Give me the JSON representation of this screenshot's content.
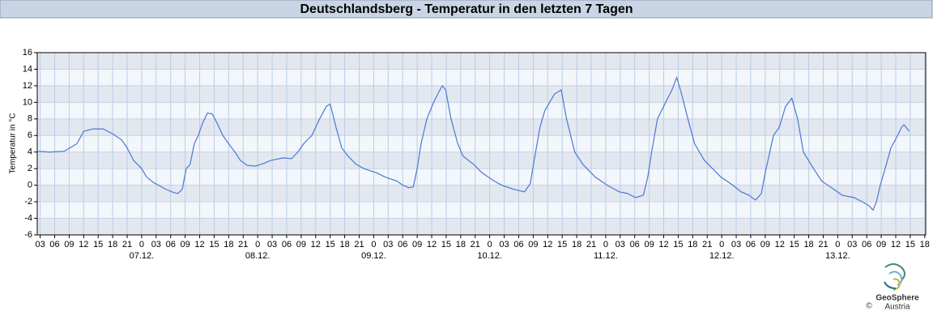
{
  "chart_data": {
    "type": "line",
    "title": "Deutschlandsberg - Temperatur in den letzten 7 Tagen",
    "y_label": "Temperatur in °C",
    "x": [
      2.4,
      5,
      8,
      10.6,
      12,
      14,
      16,
      18,
      19.8,
      21,
      22.3,
      24,
      25,
      26.5,
      27.5,
      29,
      30.7,
      31.5,
      32.4,
      33.2,
      34,
      34.9,
      35.7,
      36.6,
      37.6,
      38.6,
      39.6,
      40.8,
      42,
      43.3,
      44.4,
      45.8,
      47.5,
      49.1,
      50.8,
      53.3,
      55,
      56.3,
      57.5,
      59.2,
      60.8,
      62.2,
      63,
      64.2,
      65.4,
      66.7,
      68.4,
      70,
      72.6,
      74.3,
      76.8,
      78,
      79.3,
      80.2,
      81,
      81.8,
      83,
      84.4,
      85.7,
      86.2,
      86.9,
      88,
      89.4,
      90.5,
      92.7,
      94.4,
      96.9,
      98.5,
      101,
      103.2,
      104.4,
      105.2,
      106.4,
      107.4,
      109.4,
      110.8,
      111.9,
      113.6,
      115.3,
      117.8,
      120.3,
      122.8,
      124.5,
      126.2,
      127.8,
      128.7,
      129.5,
      130.7,
      132.4,
      133.7,
      134.7,
      135.7,
      137,
      138.4,
      140.4,
      142.1,
      143.8,
      146.3,
      148,
      149.6,
      151,
      152.2,
      153,
      154.7,
      155.9,
      157.2,
      158.5,
      159.7,
      160.9,
      163,
      164.7,
      167.2,
      168.9,
      171.4,
      173.1,
      174.5,
      175.3,
      176,
      176.8,
      177.8,
      179,
      180.4,
      181.2,
      181.7,
      182.8
    ],
    "series": [
      {
        "color": "#4a78d6",
        "values": [
          4.1,
          4.0,
          4.1,
          5,
          6.5,
          6.8,
          6.8,
          6.2,
          5.5,
          4.5,
          3,
          2,
          1,
          0.3,
          0,
          -0.5,
          -0.9,
          -1,
          -0.5,
          2,
          2.5,
          5,
          6,
          7.5,
          8.7,
          8.6,
          7.5,
          6,
          5,
          4,
          3,
          2.4,
          2.3,
          2.6,
          3.0,
          3.3,
          3.2,
          4,
          5,
          6,
          8,
          9.5,
          9.8,
          7,
          4.5,
          3.5,
          2.5,
          2,
          1.5,
          1,
          0.5,
          0,
          -0.3,
          -0.2,
          2,
          5,
          8,
          10,
          11.5,
          12,
          11.5,
          8,
          5,
          3.5,
          2.5,
          1.5,
          0.5,
          0,
          -0.5,
          -0.8,
          0.2,
          3,
          7,
          9,
          11,
          11.5,
          8,
          4,
          2.5,
          1,
          0,
          -0.8,
          -1,
          -1.5,
          -1.2,
          1,
          4,
          8,
          10,
          11.5,
          13,
          11,
          8,
          5,
          3,
          2,
          1,
          0,
          -0.8,
          -1.2,
          -1.8,
          -1,
          1.5,
          6,
          7,
          9.5,
          10.5,
          8,
          4,
          2,
          0.5,
          -0.5,
          -1.2,
          -1.5,
          -2,
          -2.5,
          -3,
          -2,
          0,
          2,
          4.5,
          6,
          7,
          7.3,
          6.5
        ]
      }
    ],
    "xlim": [
      2.4,
      186.2
    ],
    "ylim": [
      -6,
      16
    ],
    "yticks": [
      -6,
      -4,
      -2,
      0,
      2,
      4,
      6,
      8,
      10,
      12,
      14,
      16
    ],
    "xticks": [
      {
        "value": 3,
        "label": "03"
      },
      {
        "value": 6,
        "label": "06"
      },
      {
        "value": 9,
        "label": "09"
      },
      {
        "value": 12,
        "label": "12"
      },
      {
        "value": 15,
        "label": "15"
      },
      {
        "value": 18,
        "label": "18"
      },
      {
        "value": 21,
        "label": "21"
      },
      {
        "value": 24,
        "label": "0"
      },
      {
        "value": 27,
        "label": "03"
      },
      {
        "value": 30,
        "label": "06"
      },
      {
        "value": 33,
        "label": "09"
      },
      {
        "value": 36,
        "label": "12"
      },
      {
        "value": 39,
        "label": "15"
      },
      {
        "value": 42,
        "label": "18"
      },
      {
        "value": 45,
        "label": "21"
      },
      {
        "value": 48,
        "label": "0"
      },
      {
        "value": 51,
        "label": "03"
      },
      {
        "value": 54,
        "label": "06"
      },
      {
        "value": 57,
        "label": "09"
      },
      {
        "value": 60,
        "label": "12"
      },
      {
        "value": 63,
        "label": "15"
      },
      {
        "value": 66,
        "label": "18"
      },
      {
        "value": 69,
        "label": "21"
      },
      {
        "value": 72,
        "label": "0"
      },
      {
        "value": 75,
        "label": "03"
      },
      {
        "value": 78,
        "label": "06"
      },
      {
        "value": 81,
        "label": "09"
      },
      {
        "value": 84,
        "label": "12"
      },
      {
        "value": 87,
        "label": "15"
      },
      {
        "value": 90,
        "label": "18"
      },
      {
        "value": 93,
        "label": "21"
      },
      {
        "value": 96,
        "label": "0"
      },
      {
        "value": 99,
        "label": "03"
      },
      {
        "value": 102,
        "label": "06"
      },
      {
        "value": 105,
        "label": "09"
      },
      {
        "value": 108,
        "label": "12"
      },
      {
        "value": 111,
        "label": "15"
      },
      {
        "value": 114,
        "label": "18"
      },
      {
        "value": 117,
        "label": "21"
      },
      {
        "value": 120,
        "label": "0"
      },
      {
        "value": 123,
        "label": "03"
      },
      {
        "value": 126,
        "label": "06"
      },
      {
        "value": 129,
        "label": "09"
      },
      {
        "value": 132,
        "label": "12"
      },
      {
        "value": 135,
        "label": "15"
      },
      {
        "value": 138,
        "label": "18"
      },
      {
        "value": 141,
        "label": "21"
      },
      {
        "value": 144,
        "label": "0"
      },
      {
        "value": 147,
        "label": "03"
      },
      {
        "value": 150,
        "label": "06"
      },
      {
        "value": 153,
        "label": "09"
      },
      {
        "value": 156,
        "label": "12"
      },
      {
        "value": 159,
        "label": "15"
      },
      {
        "value": 162,
        "label": "18"
      },
      {
        "value": 165,
        "label": "21"
      },
      {
        "value": 168,
        "label": "0"
      },
      {
        "value": 171,
        "label": "03"
      },
      {
        "value": 174,
        "label": "06"
      },
      {
        "value": 177,
        "label": "09"
      },
      {
        "value": 180,
        "label": "12"
      },
      {
        "value": 183,
        "label": "15"
      },
      {
        "value": 186,
        "label": "18"
      }
    ],
    "date_ticks": [
      {
        "value": 24,
        "label": "07.12."
      },
      {
        "value": 48,
        "label": "08.12."
      },
      {
        "value": 72,
        "label": "09.12."
      },
      {
        "value": 96,
        "label": "10.12."
      },
      {
        "value": 120,
        "label": "11.12."
      },
      {
        "value": 144,
        "label": "12.12."
      },
      {
        "value": 168,
        "label": "13.12."
      }
    ],
    "grid": true
  },
  "logo": {
    "name": "GeoSphere",
    "country": "Austria",
    "copyright": "©"
  }
}
